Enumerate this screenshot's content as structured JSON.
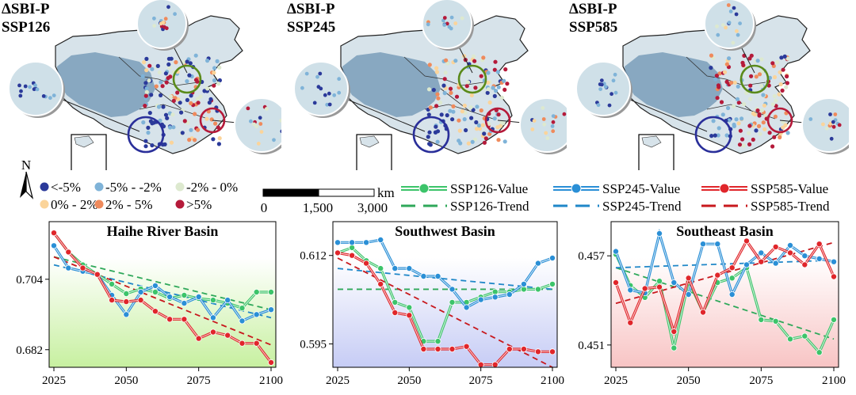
{
  "maps": [
    {
      "title_line1": "ΔSBI-P",
      "title_line2": "SSP126"
    },
    {
      "title_line1": "ΔSBI-P",
      "title_line2": "SSP245"
    },
    {
      "title_line1": "ΔSBI-P",
      "title_line2": "SSP585"
    }
  ],
  "north_label": "N",
  "colors": {
    "lt_m5": "#2b3a9a",
    "m5_m2": "#7fb3d8",
    "m2_0": "#dde9cf",
    "p0_2": "#fbd49a",
    "p2_5": "#ef8a5c",
    "gt_5": "#b51a3a",
    "ssp126": "#3cc46a",
    "ssp245": "#2a8fd6",
    "ssp585": "#e0262b",
    "trend126": "#2fa85a",
    "trend245": "#1f87c8",
    "trend585": "#c8181d",
    "china_fill": "#d7e3ea",
    "plateau": "#6e94b3"
  },
  "legend": {
    "classes": [
      {
        "label": "<-5%",
        "color": "#2b3a9a"
      },
      {
        "label": "-5% - -2%",
        "color": "#7fb3d8"
      },
      {
        "label": "-2% - 0%",
        "color": "#dde9cf"
      },
      {
        "label": "0% - 2%",
        "color": "#fbd49a"
      },
      {
        "label": "2% - 5%",
        "color": "#ef8a5c"
      },
      {
        "label": ">5%",
        "color": "#b51a3a"
      }
    ],
    "scale_unit": "km",
    "scale_ticks": [
      "0",
      "1,500",
      "3,000"
    ],
    "series_value": [
      "SSP126-Value",
      "SSP245-Value",
      "SSP585-Value"
    ],
    "series_trend": [
      "SSP126-Trend",
      "SSP245-Trend",
      "SSP585-Trend"
    ]
  },
  "chart_data": [
    {
      "type": "line",
      "title": "Haihe River Basin",
      "x": [
        2025,
        2030,
        2035,
        2040,
        2045,
        2050,
        2055,
        2060,
        2065,
        2070,
        2075,
        2080,
        2085,
        2090,
        2095,
        2100
      ],
      "xticks": [
        2025,
        2050,
        2075,
        2100
      ],
      "yticks": [
        0.682,
        0.704
      ],
      "ylim": [
        0.6765,
        0.722
      ],
      "series": [
        {
          "name": "SSP126",
          "values": [
            0.7185,
            0.7125,
            0.7085,
            0.7055,
            0.7025,
            0.6995,
            0.701,
            0.7,
            0.698,
            0.699,
            0.698,
            0.6975,
            0.6965,
            0.695,
            0.7,
            0.7
          ]
        },
        {
          "name": "SSP245",
          "values": [
            0.7145,
            0.7075,
            0.7065,
            0.7055,
            0.699,
            0.693,
            0.7,
            0.702,
            0.6985,
            0.6965,
            0.6985,
            0.692,
            0.6975,
            0.691,
            0.693,
            0.6945
          ]
        },
        {
          "name": "SSP585",
          "values": [
            0.7185,
            0.7125,
            0.7075,
            0.7055,
            0.6975,
            0.697,
            0.6975,
            0.694,
            0.6915,
            0.6915,
            0.6855,
            0.6875,
            0.6865,
            0.684,
            0.684,
            0.678
          ]
        }
      ],
      "trends": [
        {
          "name": "SSP126",
          "start": 0.711,
          "end": 0.6945
        },
        {
          "name": "SSP245",
          "start": 0.7085,
          "end": 0.692
        },
        {
          "name": "SSP585",
          "start": 0.711,
          "end": 0.6835
        }
      ]
    },
    {
      "type": "line",
      "title": "Southwest Basin",
      "x": [
        2025,
        2030,
        2035,
        2040,
        2045,
        2050,
        2055,
        2060,
        2065,
        2070,
        2075,
        2080,
        2085,
        2090,
        2095,
        2100
      ],
      "xticks": [
        2025,
        2050,
        2075,
        2100
      ],
      "yticks": [
        0.595,
        0.612
      ],
      "ylim": [
        0.5905,
        0.6185
      ],
      "series": [
        {
          "name": "SSP126",
          "values": [
            0.6125,
            0.6135,
            0.611,
            0.6095,
            0.603,
            0.602,
            0.5955,
            0.5955,
            0.603,
            0.603,
            0.604,
            0.605,
            0.605,
            0.6055,
            0.6055,
            0.6065
          ]
        },
        {
          "name": "SSP245",
          "values": [
            0.6145,
            0.6145,
            0.6145,
            0.615,
            0.6095,
            0.6095,
            0.608,
            0.608,
            0.6055,
            0.602,
            0.6035,
            0.604,
            0.6045,
            0.6065,
            0.6105,
            0.6115
          ]
        },
        {
          "name": "SSP585",
          "values": [
            0.6125,
            0.612,
            0.6105,
            0.6065,
            0.601,
            0.6005,
            0.594,
            0.594,
            0.594,
            0.5945,
            0.591,
            0.591,
            0.594,
            0.594,
            0.5935,
            0.5935
          ]
        }
      ],
      "trends": [
        {
          "name": "SSP126",
          "start": 0.6055,
          "end": 0.6055
        },
        {
          "name": "SSP245",
          "start": 0.6095,
          "end": 0.6055
        },
        {
          "name": "SSP585",
          "start": 0.6115,
          "end": 0.5905
        }
      ]
    },
    {
      "type": "line",
      "title": "Southeast Basin",
      "x": [
        2025,
        2030,
        2035,
        2040,
        2045,
        2050,
        2055,
        2060,
        2065,
        2070,
        2075,
        2080,
        2085,
        2090,
        2095,
        2100
      ],
      "xticks": [
        2025,
        2050,
        2075,
        2100
      ],
      "yticks": [
        0.451,
        0.457
      ],
      "ylim": [
        0.4495,
        0.4593
      ],
      "series": [
        {
          "name": "SSP126",
          "values": [
            0.4571,
            0.455,
            0.4542,
            0.4553,
            0.4508,
            0.4553,
            0.4532,
            0.4552,
            0.4555,
            0.4562,
            0.4527,
            0.4526,
            0.4514,
            0.4516,
            0.4505,
            0.4527
          ]
        },
        {
          "name": "SSP245",
          "values": [
            0.4573,
            0.4547,
            0.4545,
            0.4585,
            0.4552,
            0.4544,
            0.4578,
            0.4578,
            0.4544,
            0.4564,
            0.4572,
            0.4565,
            0.4577,
            0.457,
            0.4568,
            0.4566
          ]
        },
        {
          "name": "SSP585",
          "values": [
            0.4552,
            0.4525,
            0.4548,
            0.4549,
            0.4519,
            0.4555,
            0.4532,
            0.4557,
            0.4562,
            0.458,
            0.4566,
            0.4576,
            0.4572,
            0.4564,
            0.4578,
            0.4556
          ]
        }
      ],
      "trends": [
        {
          "name": "SSP126",
          "start": 0.4562,
          "end": 0.4514
        },
        {
          "name": "SSP245",
          "start": 0.4562,
          "end": 0.4567
        },
        {
          "name": "SSP585",
          "start": 0.4538,
          "end": 0.4579
        }
      ]
    }
  ]
}
